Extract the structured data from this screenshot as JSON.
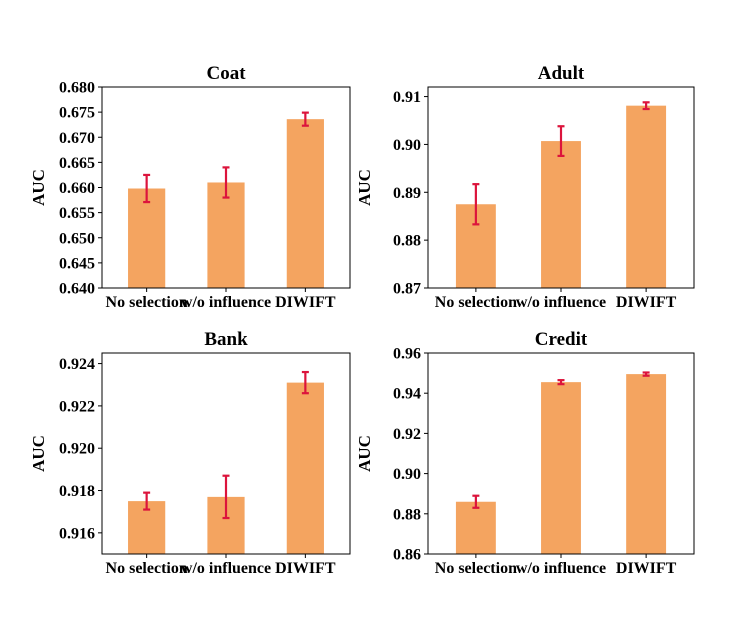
{
  "chart_data": [
    {
      "type": "bar",
      "title": "Coat",
      "ylabel": "AUC",
      "categories": [
        "No selection",
        "w/o influence",
        "DIWIFT"
      ],
      "values": [
        0.6598,
        0.661,
        0.6736
      ],
      "errors": [
        0.0027,
        0.003,
        0.0013
      ],
      "ylim": [
        0.64,
        0.68
      ],
      "yticks": [
        "0.640",
        "0.645",
        "0.650",
        "0.655",
        "0.660",
        "0.665",
        "0.670",
        "0.675",
        "0.680"
      ],
      "bar_color": "#F4A460",
      "error_color": "#DC143C"
    },
    {
      "type": "bar",
      "title": "Adult",
      "ylabel": "AUC",
      "categories": [
        "No selection",
        "w/o influence",
        "DIWIFT"
      ],
      "values": [
        0.8875,
        0.9007,
        0.9081
      ],
      "errors": [
        0.0042,
        0.0031,
        0.0007
      ],
      "ylim": [
        0.87,
        0.912
      ],
      "yticks": [
        "0.87",
        "0.88",
        "0.89",
        "0.90",
        "0.91"
      ],
      "bar_color": "#F4A460",
      "error_color": "#DC143C"
    },
    {
      "type": "bar",
      "title": "Bank",
      "ylabel": "AUC",
      "categories": [
        "No selection",
        "w/o influence",
        "DIWIFT"
      ],
      "values": [
        0.9175,
        0.9177,
        0.9231
      ],
      "errors": [
        0.0004,
        0.001,
        0.0005
      ],
      "ylim": [
        0.915,
        0.9245
      ],
      "yticks": [
        "0.916",
        "0.918",
        "0.920",
        "0.922",
        "0.924"
      ],
      "bar_color": "#F4A460",
      "error_color": "#DC143C"
    },
    {
      "type": "bar",
      "title": "Credit",
      "ylabel": "AUC",
      "categories": [
        "No selection",
        "w/o influence",
        "DIWIFT"
      ],
      "values": [
        0.886,
        0.9455,
        0.9495
      ],
      "errors": [
        0.003,
        0.001,
        0.0008
      ],
      "ylim": [
        0.86,
        0.96
      ],
      "yticks": [
        "0.86",
        "0.88",
        "0.90",
        "0.92",
        "0.94",
        "0.96"
      ],
      "bar_color": "#F4A460",
      "error_color": "#DC143C"
    }
  ]
}
